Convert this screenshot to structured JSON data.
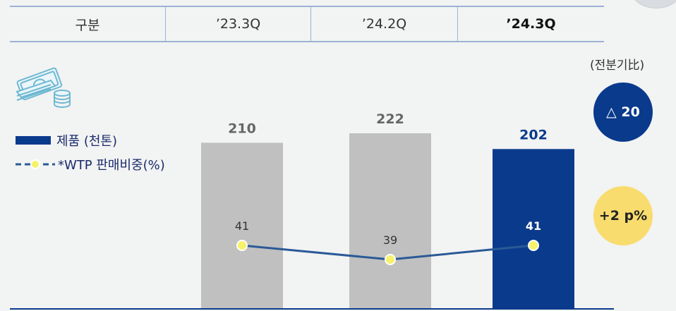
{
  "header": {
    "columns": [
      "구분",
      "’23.3Q",
      "’24.2Q",
      "’24.3Q"
    ]
  },
  "unit_note": "(전분기比)",
  "badges": {
    "volume_change": "△ 20",
    "share_change": "+2 p%"
  },
  "legend": {
    "bar_label": "제품 (천톤)",
    "line_label": "*WTP 판매비중(%)"
  },
  "icons": {
    "money": "money-stack-icon"
  },
  "colors": {
    "bar_gray": "#c0c0c0",
    "bar_highlight": "#0a3a8c",
    "line": "#2a5a96",
    "marker": "#f6f26a",
    "badge_navy": "#0a3a8c",
    "badge_yellow": "#f8dc6e",
    "header_rule": "#9bb2d4"
  },
  "chart_data": {
    "type": "bar",
    "categories": [
      "’23.3Q",
      "’24.2Q",
      "’24.3Q"
    ],
    "series": [
      {
        "name": "제품 (천톤)",
        "type": "bar",
        "values": [
          210,
          222,
          202
        ]
      },
      {
        "name": "*WTP 판매비중(%)",
        "type": "line",
        "values": [
          41,
          39,
          41
        ]
      }
    ],
    "highlight_index": 2
  }
}
